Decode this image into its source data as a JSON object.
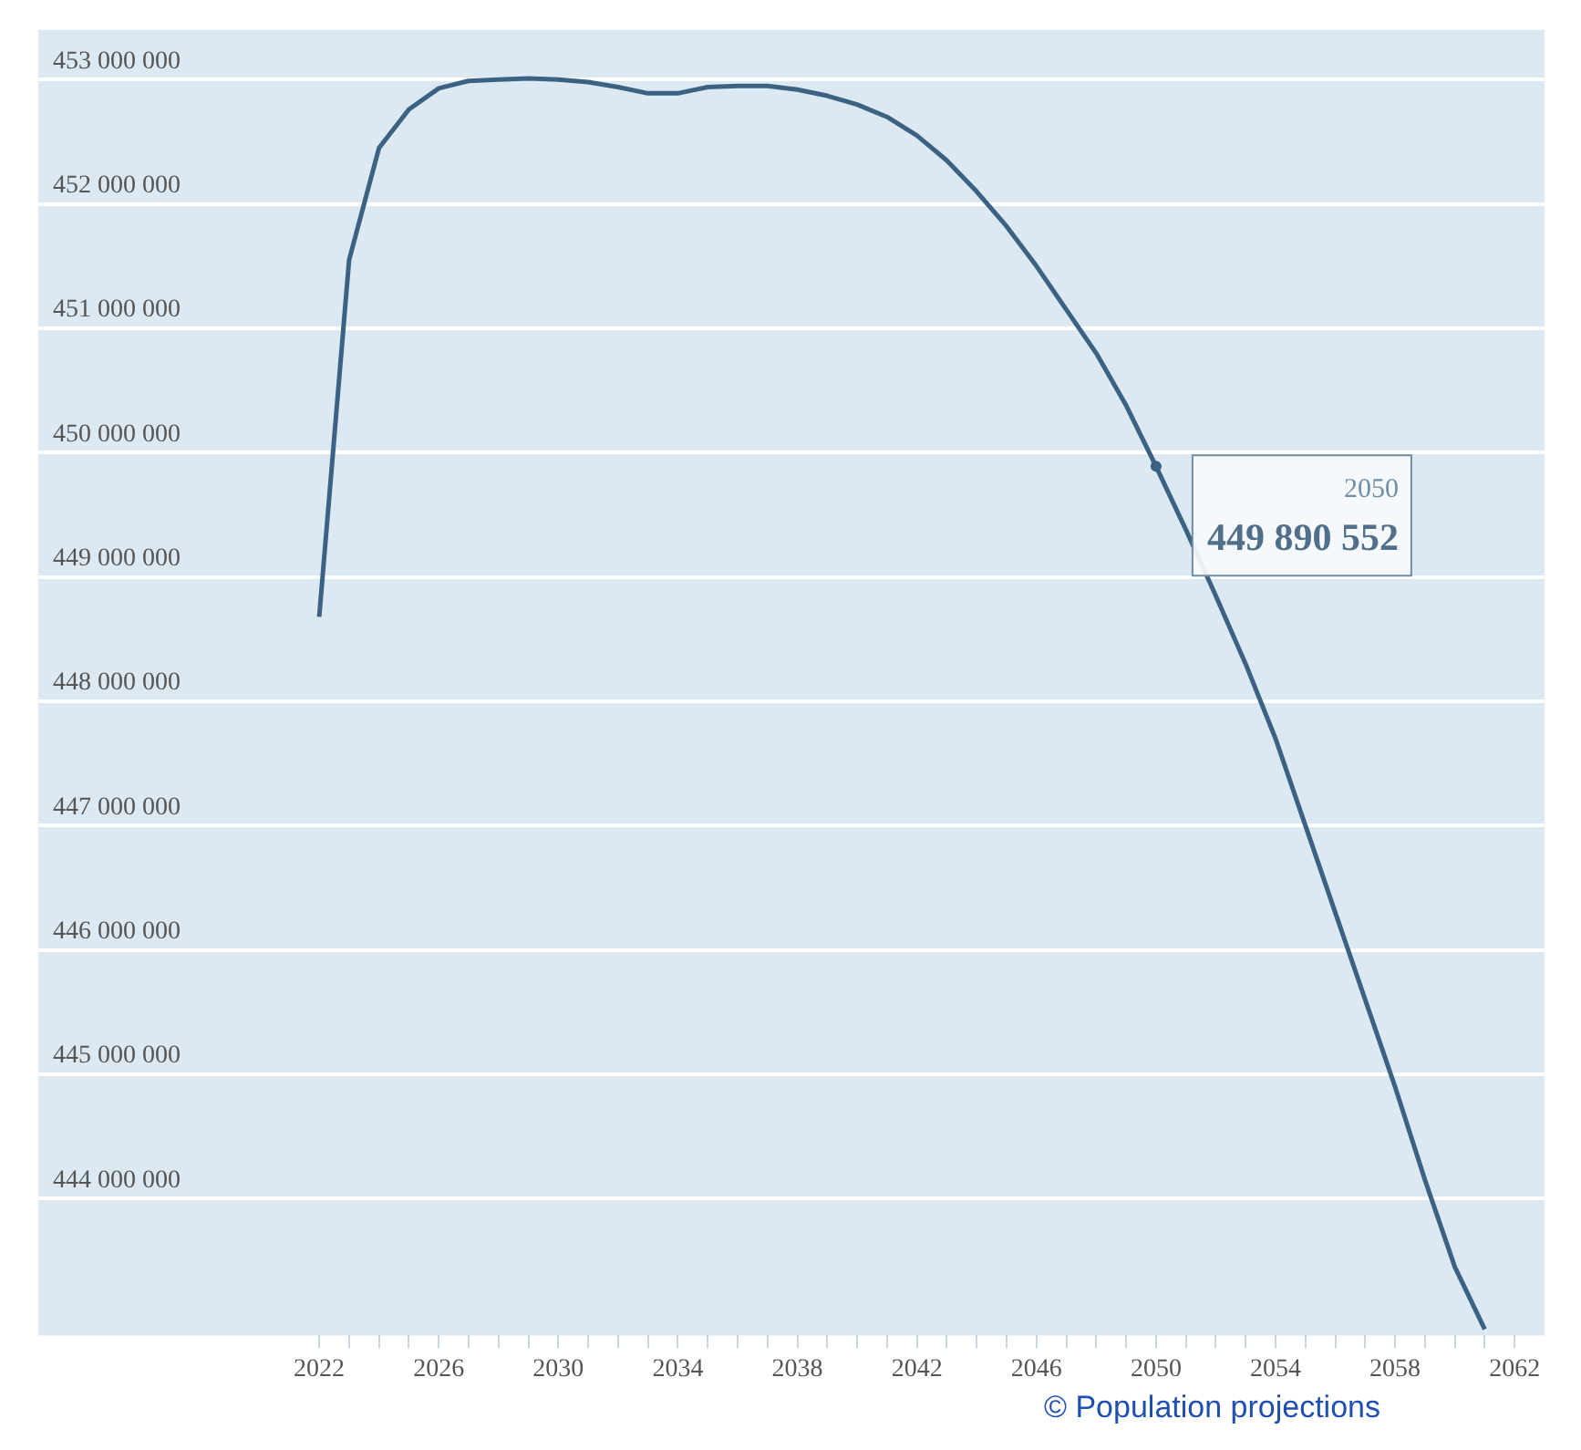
{
  "chart_data": {
    "type": "line",
    "x": [
      2022,
      2023,
      2024,
      2025,
      2026,
      2027,
      2028,
      2029,
      2030,
      2031,
      2032,
      2033,
      2034,
      2035,
      2036,
      2037,
      2038,
      2039,
      2040,
      2041,
      2042,
      2043,
      2044,
      2045,
      2046,
      2047,
      2048,
      2049,
      2050,
      2051,
      2052,
      2053,
      2054,
      2055,
      2056,
      2057,
      2058,
      2059,
      2060,
      2061
    ],
    "series": [
      {
        "color": "#3b6282",
        "values": [
          448680000,
          451550000,
          452450000,
          452760000,
          452930000,
          452990000,
          453000000,
          453010000,
          453000000,
          452980000,
          452940000,
          452890000,
          452890000,
          452940000,
          452950000,
          452950000,
          452920000,
          452870000,
          452800000,
          452700000,
          452550000,
          452350000,
          452100000,
          451820000,
          451500000,
          451150000,
          450800000,
          450380000,
          449890552,
          449380000,
          448850000,
          448300000,
          447700000,
          447000000,
          446300000,
          445600000,
          444900000,
          444150000,
          443450000,
          442950000
        ],
        "value_labels": [
          null,
          null,
          null,
          null,
          null,
          null,
          null,
          null,
          null,
          null,
          null,
          null,
          null,
          null,
          null,
          null,
          null,
          null,
          null,
          null,
          null,
          null,
          null,
          null,
          null,
          null,
          null,
          null,
          "449 890 552",
          null,
          null,
          null,
          null,
          null,
          null,
          null,
          null,
          null,
          null,
          null
        ]
      }
    ],
    "annotations": [
      "2050",
      "© Population projections"
    ],
    "xlim": [
      2012.6,
      2063
    ],
    "xticks": [
      {
        "value": 2022,
        "label": "2022"
      },
      {
        "value": 2023,
        "label": null
      },
      {
        "value": 2024,
        "label": null
      },
      {
        "value": 2025,
        "label": null
      },
      {
        "value": 2026,
        "label": "2026"
      },
      {
        "value": 2027,
        "label": null
      },
      {
        "value": 2028,
        "label": null
      },
      {
        "value": 2029,
        "label": null
      },
      {
        "value": 2030,
        "label": "2030"
      },
      {
        "value": 2031,
        "label": null
      },
      {
        "value": 2032,
        "label": null
      },
      {
        "value": 2033,
        "label": null
      },
      {
        "value": 2034,
        "label": "2034"
      },
      {
        "value": 2035,
        "label": null
      },
      {
        "value": 2036,
        "label": null
      },
      {
        "value": 2037,
        "label": null
      },
      {
        "value": 2038,
        "label": "2038"
      },
      {
        "value": 2039,
        "label": null
      },
      {
        "value": 2040,
        "label": null
      },
      {
        "value": 2041,
        "label": null
      },
      {
        "value": 2042,
        "label": "2042"
      },
      {
        "value": 2043,
        "label": null
      },
      {
        "value": 2044,
        "label": null
      },
      {
        "value": 2045,
        "label": null
      },
      {
        "value": 2046,
        "label": "2046"
      },
      {
        "value": 2047,
        "label": null
      },
      {
        "value": 2048,
        "label": null
      },
      {
        "value": 2049,
        "label": null
      },
      {
        "value": 2050,
        "label": "2050"
      },
      {
        "value": 2051,
        "label": null
      },
      {
        "value": 2052,
        "label": null
      },
      {
        "value": 2053,
        "label": null
      },
      {
        "value": 2054,
        "label": "2054"
      },
      {
        "value": 2055,
        "label": null
      },
      {
        "value": 2056,
        "label": null
      },
      {
        "value": 2057,
        "label": null
      },
      {
        "value": 2058,
        "label": "2058"
      },
      {
        "value": 2059,
        "label": null
      },
      {
        "value": 2060,
        "label": null
      },
      {
        "value": 2061,
        "label": null
      },
      {
        "value": 2062,
        "label": "2062"
      }
    ],
    "ylim": [
      442900000,
      453400000
    ],
    "yticks": [
      {
        "value": 444000000,
        "label": "444 000 000"
      },
      {
        "value": 445000000,
        "label": "445 000 000"
      },
      {
        "value": 446000000,
        "label": "446 000 000"
      },
      {
        "value": 447000000,
        "label": "447 000 000"
      },
      {
        "value": 448000000,
        "label": "448 000 000"
      },
      {
        "value": 449000000,
        "label": "449 000 000"
      },
      {
        "value": 450000000,
        "label": "450 000 000"
      },
      {
        "value": 451000000,
        "label": "451 000 000"
      },
      {
        "value": 452000000,
        "label": "452 000 000"
      },
      {
        "value": 453000000,
        "label": "453 000 000"
      }
    ],
    "grid": "y",
    "legend": false,
    "marker": "none",
    "line_style": "solid"
  }
}
